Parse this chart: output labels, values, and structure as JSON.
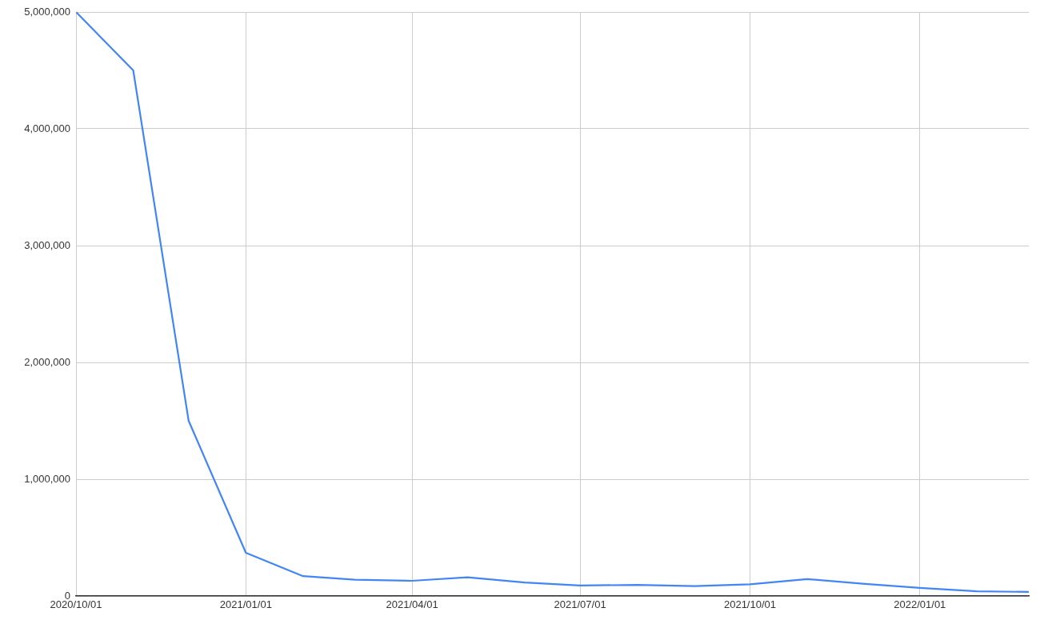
{
  "chart_data": {
    "type": "line",
    "x": [
      "2020-10-01",
      "2020-11-01",
      "2020-12-01",
      "2021-01-01",
      "2021-02-01",
      "2021-03-01",
      "2021-04-01",
      "2021-05-01",
      "2021-06-01",
      "2021-07-01",
      "2021-08-01",
      "2021-09-01",
      "2021-10-01",
      "2021-11-01",
      "2021-12-01",
      "2022-01-01",
      "2022-02-01",
      "2022-03-01"
    ],
    "series": [
      {
        "color": "#4285f4",
        "values": [
          5000000,
          4500000,
          1500000,
          370000,
          170000,
          140000,
          130000,
          160000,
          115000,
          90000,
          95000,
          85000,
          100000,
          145000,
          105000,
          70000,
          40000,
          35000
        ]
      }
    ],
    "xlim": [
      "2020-10-01",
      "2022-03-01"
    ],
    "xticks": [
      {
        "value": "2020-10-01",
        "label": "2020/10/01"
      },
      {
        "value": "2021-01-01",
        "label": "2021/01/01"
      },
      {
        "value": "2021-04-01",
        "label": "2021/04/01"
      },
      {
        "value": "2021-07-01",
        "label": "2021/07/01"
      },
      {
        "value": "2021-10-01",
        "label": "2021/10/01"
      },
      {
        "value": "2022-01-01",
        "label": "2022/01/01"
      }
    ],
    "ylim": [
      0,
      5000000
    ],
    "yticks": [
      {
        "value": 0,
        "label": "0"
      },
      {
        "value": 1000000,
        "label": "1,000,000"
      },
      {
        "value": 2000000,
        "label": "2,000,000"
      },
      {
        "value": 3000000,
        "label": "3,000,000"
      },
      {
        "value": 4000000,
        "label": "4,000,000"
      },
      {
        "value": 5000000,
        "label": "5,000,000"
      }
    ],
    "grid": true,
    "legend": false,
    "marker": "none",
    "line_style": "solid"
  }
}
